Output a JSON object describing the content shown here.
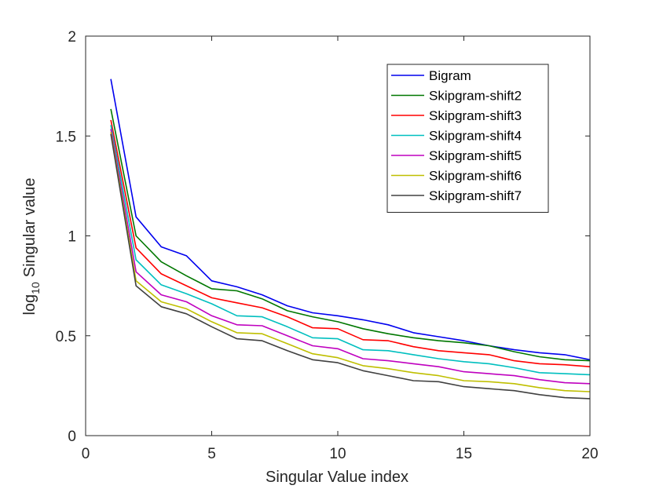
{
  "chart_data": {
    "type": "line",
    "title": "",
    "xlabel": "Singular Value index",
    "ylabel_main": "log",
    "ylabel_sub": "10",
    "ylabel_rest": "Singular value",
    "xlim": [
      0,
      20
    ],
    "ylim": [
      0,
      2
    ],
    "xticks": [
      "0",
      "5",
      "10",
      "15",
      "20"
    ],
    "xtick_values": [
      0,
      5,
      10,
      15,
      20
    ],
    "yticks": [
      "0",
      "0.5",
      "1",
      "1.5",
      "2"
    ],
    "ytick_values": [
      0,
      0.5,
      1,
      1.5,
      2
    ],
    "grid": false,
    "legend_position": "top-right",
    "x": [
      1,
      2,
      3,
      4,
      5,
      6,
      7,
      8,
      9,
      10,
      11,
      12,
      13,
      14,
      15,
      16,
      17,
      18,
      19,
      20
    ],
    "series": [
      {
        "name": "Bigram",
        "color": "#0000ee",
        "values": [
          1.785,
          1.095,
          0.945,
          0.9,
          0.775,
          0.745,
          0.705,
          0.65,
          0.615,
          0.6,
          0.58,
          0.555,
          0.515,
          0.495,
          0.475,
          0.45,
          0.43,
          0.415,
          0.405,
          0.38
        ]
      },
      {
        "name": "Skipgram-shift2",
        "color": "#007700",
        "values": [
          1.635,
          1.0,
          0.87,
          0.8,
          0.735,
          0.725,
          0.685,
          0.625,
          0.595,
          0.57,
          0.535,
          0.51,
          0.49,
          0.475,
          0.465,
          0.45,
          0.42,
          0.395,
          0.38,
          0.375
        ]
      },
      {
        "name": "Skipgram-shift3",
        "color": "#ff0000",
        "values": [
          1.58,
          0.94,
          0.81,
          0.75,
          0.69,
          0.665,
          0.64,
          0.595,
          0.54,
          0.535,
          0.48,
          0.475,
          0.445,
          0.425,
          0.415,
          0.405,
          0.375,
          0.36,
          0.355,
          0.345
        ]
      },
      {
        "name": "Skipgram-shift4",
        "color": "#00bfbf",
        "values": [
          1.555,
          0.88,
          0.755,
          0.71,
          0.66,
          0.6,
          0.595,
          0.545,
          0.49,
          0.485,
          0.43,
          0.425,
          0.405,
          0.385,
          0.37,
          0.36,
          0.34,
          0.315,
          0.31,
          0.305
        ]
      },
      {
        "name": "Skipgram-shift5",
        "color": "#bf00bf",
        "values": [
          1.535,
          0.82,
          0.705,
          0.67,
          0.6,
          0.555,
          0.55,
          0.5,
          0.45,
          0.435,
          0.385,
          0.375,
          0.36,
          0.345,
          0.32,
          0.31,
          0.3,
          0.28,
          0.265,
          0.26
        ]
      },
      {
        "name": "Skipgram-shift6",
        "color": "#bfbf00",
        "values": [
          1.52,
          0.775,
          0.67,
          0.635,
          0.57,
          0.515,
          0.51,
          0.46,
          0.41,
          0.39,
          0.35,
          0.335,
          0.315,
          0.3,
          0.275,
          0.27,
          0.26,
          0.24,
          0.225,
          0.22
        ]
      },
      {
        "name": "Skipgram-shift7",
        "color": "#404040",
        "values": [
          1.51,
          0.75,
          0.645,
          0.61,
          0.545,
          0.485,
          0.475,
          0.425,
          0.38,
          0.365,
          0.325,
          0.3,
          0.275,
          0.27,
          0.245,
          0.235,
          0.225,
          0.205,
          0.19,
          0.185
        ]
      }
    ]
  }
}
